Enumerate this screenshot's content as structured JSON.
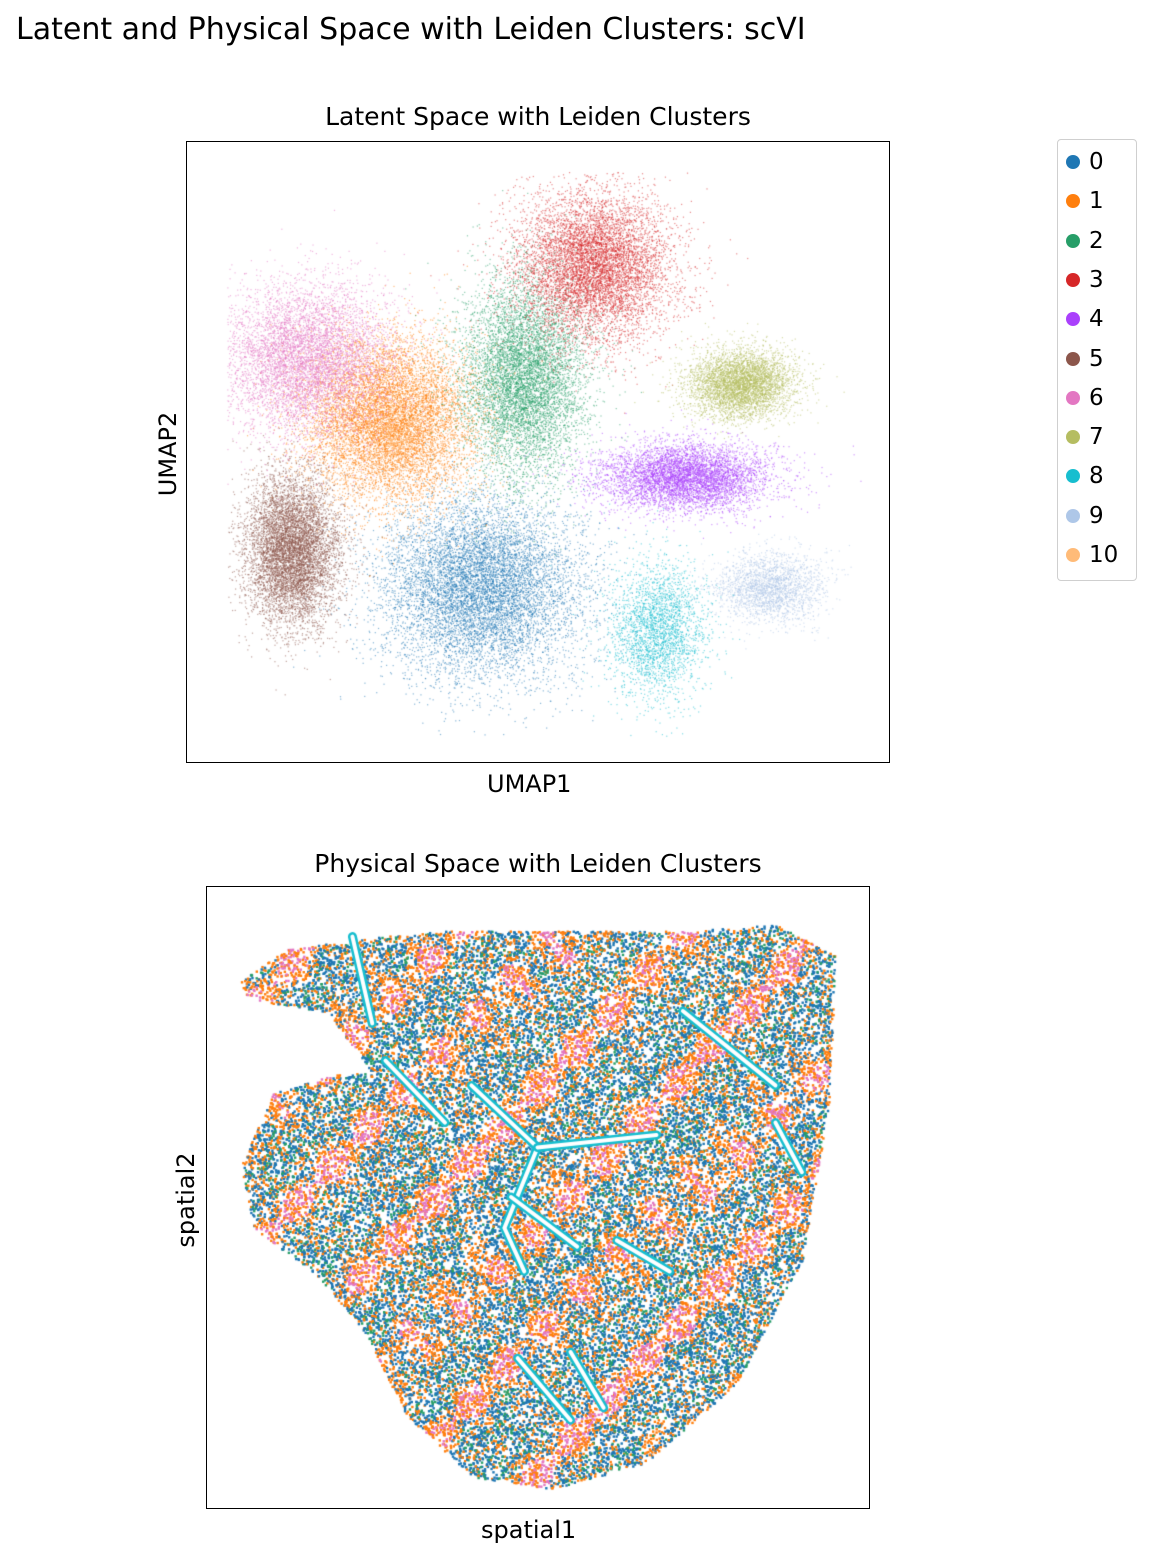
{
  "figure": {
    "suptitle": "Latent and Physical Space with Leiden Clusters: scVI"
  },
  "chart_data": [
    {
      "type": "scatter",
      "title": "Latent Space with Leiden Clusters",
      "xlabel": "UMAP1",
      "ylabel": "UMAP2",
      "ticks": "none",
      "grid": false,
      "legend": "right-outside",
      "xlim": [
        0,
        100
      ],
      "ylim": [
        0,
        100
      ],
      "clusters": [
        {
          "name": "0",
          "color": "#1f77b4",
          "center": [
            42,
            28
          ],
          "spread": [
            13,
            13
          ],
          "density": 1.0
        },
        {
          "name": "1",
          "color": "#ff7f0e",
          "center": [
            29,
            55
          ],
          "spread": [
            11,
            12
          ],
          "density": 1.0
        },
        {
          "name": "2",
          "color": "#279e68",
          "center": [
            48,
            62
          ],
          "spread": [
            8,
            15
          ],
          "density": 0.8
        },
        {
          "name": "3",
          "color": "#d62728",
          "center": [
            58,
            80
          ],
          "spread": [
            10,
            11
          ],
          "density": 0.8
        },
        {
          "name": "4",
          "color": "#aa40fc",
          "center": [
            71,
            46
          ],
          "spread": [
            11,
            5
          ],
          "density": 0.6
        },
        {
          "name": "5",
          "color": "#8c564b",
          "center": [
            15,
            34
          ],
          "spread": [
            6,
            11
          ],
          "density": 0.8
        },
        {
          "name": "6",
          "color": "#e377c2",
          "center": [
            17,
            65
          ],
          "spread": [
            11,
            11
          ],
          "density": 0.7
        },
        {
          "name": "7",
          "color": "#b5bd61",
          "center": [
            79,
            61
          ],
          "spread": [
            7,
            5
          ],
          "density": 0.5
        },
        {
          "name": "8",
          "color": "#17becf",
          "center": [
            67,
            21
          ],
          "spread": [
            6,
            10
          ],
          "density": 0.3
        },
        {
          "name": "9",
          "color": "#aec7e8",
          "center": [
            83,
            28
          ],
          "spread": [
            7,
            5
          ],
          "density": 0.25
        },
        {
          "name": "10",
          "color": "#ffbb78",
          "center": [
            30,
            52
          ],
          "spread": [
            2,
            2
          ],
          "density": 0.02
        }
      ]
    },
    {
      "type": "scatter",
      "title": "Physical Space with Leiden Clusters",
      "xlabel": "spatial1",
      "ylabel": "spatial2",
      "ticks": "none",
      "grid": false,
      "xlim": [
        0,
        100
      ],
      "ylim": [
        0,
        100
      ],
      "dominant_clusters": [
        "0",
        "1",
        "6",
        "2",
        "5",
        "8"
      ],
      "vessel_cluster": "8"
    }
  ],
  "legend": {
    "entries": [
      {
        "label": "0",
        "color": "#1f77b4"
      },
      {
        "label": "1",
        "color": "#ff7f0e"
      },
      {
        "label": "2",
        "color": "#279e68"
      },
      {
        "label": "3",
        "color": "#d62728"
      },
      {
        "label": "4",
        "color": "#aa40fc"
      },
      {
        "label": "5",
        "color": "#8c564b"
      },
      {
        "label": "6",
        "color": "#e377c2"
      },
      {
        "label": "7",
        "color": "#b5bd61"
      },
      {
        "label": "8",
        "color": "#17becf"
      },
      {
        "label": "9",
        "color": "#aec7e8"
      },
      {
        "label": "10",
        "color": "#ffbb78"
      }
    ]
  }
}
